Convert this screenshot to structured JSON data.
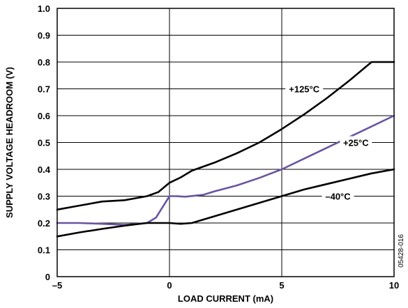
{
  "chart_data": {
    "type": "line",
    "title": "",
    "xlabel": "LOAD CURRENT (mA)",
    "ylabel": "SUPPLY VOLTAGE HEADROOM (V)",
    "xlim": [
      -5,
      10
    ],
    "ylim": [
      0,
      1.0
    ],
    "x_ticks": [
      -5,
      0,
      5,
      10
    ],
    "x_tick_labels": [
      "–5",
      "0",
      "5",
      "10"
    ],
    "y_ticks": [
      0,
      0.1,
      0.2,
      0.3,
      0.4,
      0.5,
      0.6,
      0.7,
      0.8,
      0.9,
      1.0
    ],
    "y_tick_labels": [
      "0",
      "0.1",
      "0.2",
      "0.3",
      "0.4",
      "0.5",
      "0.6",
      "0.7",
      "0.8",
      "0.9",
      "1.0"
    ],
    "grid": true,
    "series": [
      {
        "name": "+125°C",
        "color": "#000000",
        "points": [
          [
            -5,
            0.25
          ],
          [
            -4,
            0.265
          ],
          [
            -3,
            0.28
          ],
          [
            -2,
            0.285
          ],
          [
            -1,
            0.3
          ],
          [
            -0.5,
            0.315
          ],
          [
            0,
            0.35
          ],
          [
            0.5,
            0.37
          ],
          [
            1,
            0.395
          ],
          [
            2,
            0.425
          ],
          [
            3,
            0.46
          ],
          [
            4,
            0.5
          ],
          [
            5,
            0.55
          ],
          [
            6,
            0.605
          ],
          [
            7,
            0.665
          ],
          [
            8,
            0.73
          ],
          [
            9,
            0.8
          ],
          [
            10,
            0.8
          ]
        ]
      },
      {
        "name": "+25°C",
        "color": "#6a55a0",
        "points": [
          [
            -5,
            0.2
          ],
          [
            -4,
            0.2
          ],
          [
            -3,
            0.197
          ],
          [
            -2,
            0.193
          ],
          [
            -1,
            0.2
          ],
          [
            -0.6,
            0.22
          ],
          [
            -0.3,
            0.26
          ],
          [
            0,
            0.3
          ],
          [
            0.3,
            0.3
          ],
          [
            0.7,
            0.298
          ],
          [
            1.5,
            0.305
          ],
          [
            2,
            0.318
          ],
          [
            3,
            0.34
          ],
          [
            4,
            0.368
          ],
          [
            5,
            0.4
          ],
          [
            6,
            0.44
          ],
          [
            7,
            0.48
          ],
          [
            8,
            0.52
          ],
          [
            9,
            0.56
          ],
          [
            10,
            0.6
          ]
        ]
      },
      {
        "name": "–40°C",
        "color": "#000000",
        "points": [
          [
            -5,
            0.15
          ],
          [
            -4,
            0.165
          ],
          [
            -3,
            0.178
          ],
          [
            -2,
            0.19
          ],
          [
            -1,
            0.2
          ],
          [
            0,
            0.2
          ],
          [
            0.5,
            0.197
          ],
          [
            1,
            0.2
          ],
          [
            2,
            0.225
          ],
          [
            3,
            0.25
          ],
          [
            4,
            0.275
          ],
          [
            5,
            0.3
          ],
          [
            6,
            0.325
          ],
          [
            7,
            0.345
          ],
          [
            8,
            0.365
          ],
          [
            9,
            0.385
          ],
          [
            10,
            0.4
          ]
        ]
      }
    ],
    "annotations": [
      {
        "text": "+125°C",
        "x": 6.0,
        "y": 0.7
      },
      {
        "text": "+25°C",
        "x": 8.3,
        "y": 0.5
      },
      {
        "text": "–40°C",
        "x": 7.5,
        "y": 0.3
      }
    ],
    "figure_id": "05428-016"
  }
}
